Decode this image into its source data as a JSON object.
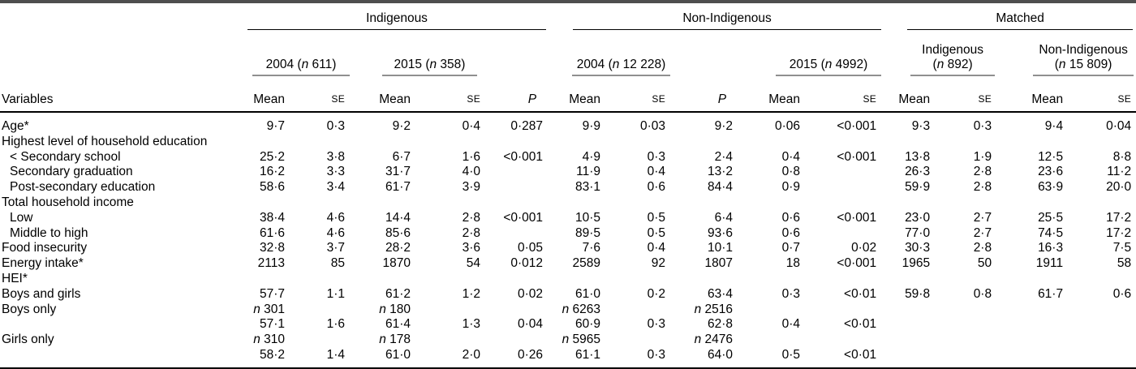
{
  "table": {
    "group_headers": {
      "indigenous": "Indigenous",
      "non_indigenous": "Non-Indigenous",
      "matched": "Matched"
    },
    "subheaders": {
      "indigenous_2004": "2004 (n 611)",
      "indigenous_2015": "2015 (n 358)",
      "non_indigenous_2004": "2004 (n 12 228)",
      "non_indigenous_2015": "2015 (n 4992)",
      "matched_indigenous_line1": "Indigenous",
      "matched_indigenous_line2": "(n 892)",
      "matched_non_indigenous_line1": "Non-Indigenous",
      "matched_non_indigenous_line2": "(n 15 809)"
    },
    "column_headers": {
      "variables": "Variables",
      "mean": "Mean",
      "se": "SE",
      "p": "P"
    },
    "rows": [
      {
        "label": "Age*",
        "indent": false,
        "cells": [
          "9·7",
          "0·3",
          "9·2",
          "0·4",
          "0·287",
          "9·9",
          "0·03",
          "9·2",
          "0·06",
          "<0·001",
          "9·3",
          "0·3",
          "9·4",
          "0·04"
        ]
      },
      {
        "label": "Highest level of household education",
        "indent": false,
        "cells": [
          "",
          "",
          "",
          "",
          "",
          "",
          "",
          "",
          "",
          "",
          "",
          "",
          "",
          ""
        ]
      },
      {
        "label": "< Secondary school",
        "indent": true,
        "cells": [
          "25·2",
          "3·8",
          "6·7",
          "1·6",
          "<0·001",
          "4·9",
          "0·3",
          "2·4",
          "0·4",
          "<0·001",
          "13·8",
          "1·9",
          "12·5",
          "8·8"
        ]
      },
      {
        "label": "Secondary graduation",
        "indent": true,
        "cells": [
          "16·2",
          "3·3",
          "31·7",
          "4·0",
          "",
          "11·9",
          "0·4",
          "13·2",
          "0·8",
          "",
          "26·3",
          "2·8",
          "23·6",
          "11·2"
        ]
      },
      {
        "label": "Post-secondary education",
        "indent": true,
        "cells": [
          "58·6",
          "3·4",
          "61·7",
          "3·9",
          "",
          "83·1",
          "0·6",
          "84·4",
          "0·9",
          "",
          "59·9",
          "2·8",
          "63·9",
          "20·0"
        ]
      },
      {
        "label": "Total household income",
        "indent": false,
        "cells": [
          "",
          "",
          "",
          "",
          "",
          "",
          "",
          "",
          "",
          "",
          "",
          "",
          "",
          ""
        ]
      },
      {
        "label": "Low",
        "indent": true,
        "cells": [
          "38·4",
          "4·6",
          "14·4",
          "2·8",
          "<0·001",
          "10·5",
          "0·5",
          "6·4",
          "0·6",
          "<0·001",
          "23·0",
          "2·7",
          "25·5",
          "17·2"
        ]
      },
      {
        "label": "Middle to high",
        "indent": true,
        "cells": [
          "61·6",
          "4·6",
          "85·6",
          "2·8",
          "",
          "89·5",
          "0·5",
          "93·6",
          "0·6",
          "",
          "77·0",
          "2·7",
          "74·5",
          "17·2"
        ]
      },
      {
        "label": "Food insecurity",
        "indent": false,
        "cells": [
          "32·8",
          "3·7",
          "28·2",
          "3·6",
          "0·05",
          "7·6",
          "0·4",
          "10·1",
          "0·7",
          "0·02",
          "30·3",
          "2·8",
          "16·3",
          "7·5"
        ]
      },
      {
        "label": "Energy intake*",
        "indent": false,
        "cells": [
          "2113",
          "85",
          "1870",
          "54",
          "0·012",
          "2589",
          "92",
          "1807",
          "18",
          "<0·001",
          "1965",
          "50",
          "1911",
          "58"
        ]
      },
      {
        "label": "HEI*",
        "indent": false,
        "cells": [
          "",
          "",
          "",
          "",
          "",
          "",
          "",
          "",
          "",
          "",
          "",
          "",
          "",
          ""
        ]
      },
      {
        "label": "Boys and girls",
        "indent": false,
        "cells": [
          "57·7",
          "1·1",
          "61·2",
          "1·2",
          "0·02",
          "61·0",
          "0·2",
          "63·4",
          "0·3",
          "<0·01",
          "59·8",
          "0·8",
          "61·7",
          "0·6"
        ]
      },
      {
        "label": "Boys only",
        "indent": false,
        "cells": [
          "n 301",
          "",
          "n 180",
          "",
          "",
          "n 6263",
          "",
          "n 2516",
          "",
          "",
          "",
          "",
          "",
          ""
        ]
      },
      {
        "label": "",
        "indent": false,
        "cells": [
          "57·1",
          "1·6",
          "61·4",
          "1·3",
          "0·04",
          "60·9",
          "0·3",
          "62·8",
          "0·4",
          "<0·01",
          "",
          "",
          "",
          ""
        ]
      },
      {
        "label": "Girls only",
        "indent": false,
        "cells": [
          "n 310",
          "",
          "n 178",
          "",
          "",
          "n 5965",
          "",
          "n 2476",
          "",
          "",
          "",
          "",
          "",
          ""
        ]
      },
      {
        "label": "",
        "indent": false,
        "cells": [
          "58·2",
          "1·4",
          "61·0",
          "2·0",
          "0·26",
          "61·1",
          "0·3",
          "64·0",
          "0·5",
          "<0·01",
          "",
          "",
          "",
          ""
        ]
      }
    ]
  }
}
